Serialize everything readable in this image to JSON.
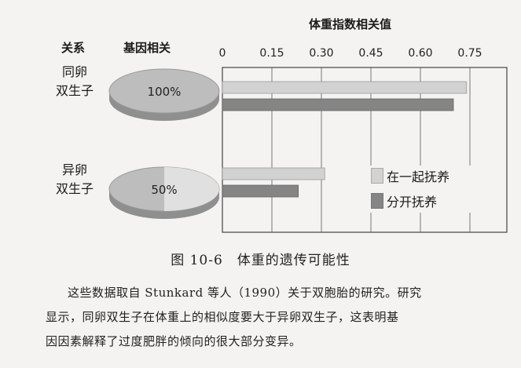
{
  "header": {
    "relation_label": "关系",
    "gene_label": "基因相关"
  },
  "chart_data": {
    "type": "bar",
    "orientation": "horizontal",
    "title": "体重指数相关值",
    "x_ticks": [
      "0",
      "0.15",
      "0.30",
      "0.45",
      "0.60",
      "0.75"
    ],
    "xlim": [
      0,
      0.75
    ],
    "grid": true,
    "legend_position": "right",
    "categories": [
      {
        "label_lines": [
          "同卵",
          "双生子"
        ],
        "gene_share": "100%",
        "gene_fraction": 1.0
      },
      {
        "label_lines": [
          "异卵",
          "双生子"
        ],
        "gene_share": "50%",
        "gene_fraction": 0.5
      }
    ],
    "series": [
      {
        "name": "在一起抚养",
        "color": "#d2d2d2",
        "values": [
          0.74,
          0.31
        ]
      },
      {
        "name": "分开抚养",
        "color": "#858585",
        "values": [
          0.7,
          0.23
        ]
      }
    ]
  },
  "caption": "图 10-6　体重的遗传可能性",
  "paragraph": [
    "这些数据取自 Stunkard 等人（1990）关于双胞胎的研究。研究",
    "显示，同卵双生子在体重上的相似度要大于异卵双生子，这表明基",
    "因因素解释了过度肥胖的倾向的很大部分变异。"
  ]
}
